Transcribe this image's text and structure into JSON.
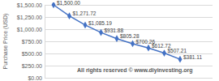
{
  "chart_data": {
    "type": "line",
    "y_label": "Purchase Price (USD)",
    "annotation": "All rights reserved © www.diyinvesting.org",
    "categories": [
      null,
      null,
      null,
      null,
      null,
      null,
      null,
      null,
      null
    ],
    "values": [
      1500,
      1271.72,
      1085.19,
      931.88,
      805.28,
      700.26,
      612.72,
      507.21,
      381.11
    ],
    "value_labels": [
      "$1,500.00",
      "$1,271.72",
      "$1,085.19",
      "$931.88",
      "$805.28",
      "$700.26",
      "$612.72",
      "$507.21",
      "$381.11"
    ],
    "data_labels": true,
    "color": "#4472c4",
    "marker": "diamond",
    "ylim": [
      0,
      1500
    ],
    "yticks": [
      {
        "value": 0,
        "label": "$0.00"
      },
      {
        "value": 250,
        "label": "$250.00"
      },
      {
        "value": 500,
        "label": "$500.00"
      },
      {
        "value": 750,
        "label": "$750.00"
      },
      {
        "value": 1000,
        "label": "$1,000.00"
      },
      {
        "value": 1250,
        "label": "$1,250.00"
      },
      {
        "value": 1500,
        "label": "$1,500.00"
      }
    ],
    "grid": true,
    "tick_labels": "y"
  }
}
